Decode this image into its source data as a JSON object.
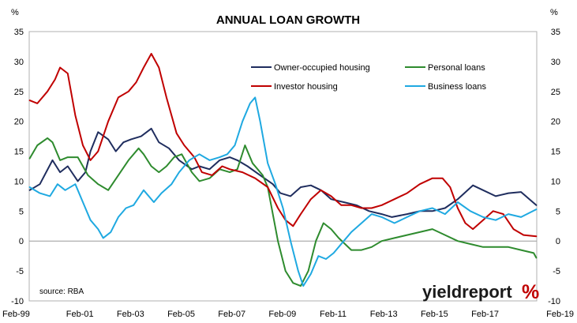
{
  "chart_data": {
    "type": "line",
    "title": "ANNUAL LOAN GROWTH",
    "left_unit": "%",
    "right_unit": "%",
    "source": "source: RBA",
    "brand": "yieldreport",
    "brand_symbol": "%",
    "ylim": [
      -10,
      35
    ],
    "y_ticks": [
      35,
      30,
      25,
      20,
      15,
      10,
      5,
      0,
      -5,
      -10
    ],
    "xlim": [
      1999.08,
      2019.12
    ],
    "x_ticks": [
      {
        "label": "Feb-99",
        "x": 1999.08
      },
      {
        "label": "Feb-01",
        "x": 2001.08
      },
      {
        "label": "Feb-03",
        "x": 2003.08
      },
      {
        "label": "Feb-05",
        "x": 2005.08
      },
      {
        "label": "Feb-07",
        "x": 2007.08
      },
      {
        "label": "Feb-09",
        "x": 2009.08
      },
      {
        "label": "Feb-11",
        "x": 2011.08
      },
      {
        "label": "Feb-13",
        "x": 2013.08
      },
      {
        "label": "Feb-15",
        "x": 2015.08
      },
      {
        "label": "Feb-17",
        "x": 2017.08
      },
      {
        "label": "Feb-19",
        "x": 2019.08
      }
    ],
    "grid": false,
    "legend_position": "top-right",
    "series": [
      {
        "name": "Owner-occupied housing",
        "color": "#1f2d5e",
        "points": [
          [
            1999.1,
            8.5
          ],
          [
            1999.5,
            9.5
          ],
          [
            2000.0,
            13.5
          ],
          [
            2000.3,
            11.5
          ],
          [
            2000.6,
            12.5
          ],
          [
            2001.0,
            10.0
          ],
          [
            2001.3,
            11.5
          ],
          [
            2001.5,
            15.0
          ],
          [
            2001.8,
            18.2
          ],
          [
            2002.2,
            17.0
          ],
          [
            2002.5,
            15.0
          ],
          [
            2002.8,
            16.5
          ],
          [
            2003.1,
            17.0
          ],
          [
            2003.5,
            17.5
          ],
          [
            2003.9,
            18.8
          ],
          [
            2004.2,
            16.5
          ],
          [
            2004.6,
            15.5
          ],
          [
            2005.0,
            13.5
          ],
          [
            2005.5,
            12.0
          ],
          [
            2005.8,
            12.5
          ],
          [
            2006.2,
            12.0
          ],
          [
            2006.6,
            13.5
          ],
          [
            2007.0,
            14.0
          ],
          [
            2007.3,
            13.5
          ],
          [
            2007.7,
            12.5
          ],
          [
            2008.2,
            11.0
          ],
          [
            2008.7,
            9.5
          ],
          [
            2009.0,
            8.0
          ],
          [
            2009.4,
            7.5
          ],
          [
            2009.8,
            9.0
          ],
          [
            2010.2,
            9.3
          ],
          [
            2010.6,
            8.5
          ],
          [
            2011.0,
            7.0
          ],
          [
            2011.5,
            6.5
          ],
          [
            2012.0,
            6.0
          ],
          [
            2012.5,
            5.0
          ],
          [
            2013.0,
            4.5
          ],
          [
            2013.4,
            4.0
          ],
          [
            2014.0,
            4.5
          ],
          [
            2014.5,
            5.0
          ],
          [
            2015.0,
            5.0
          ],
          [
            2015.5,
            5.5
          ],
          [
            2016.0,
            7.0
          ],
          [
            2016.6,
            9.3
          ],
          [
            2017.0,
            8.5
          ],
          [
            2017.5,
            7.5
          ],
          [
            2018.0,
            8.0
          ],
          [
            2018.5,
            8.2
          ],
          [
            2019.1,
            6.0
          ]
        ]
      },
      {
        "name": "Personal loans",
        "color": "#2e8b2e",
        "points": [
          [
            1999.1,
            13.8
          ],
          [
            1999.4,
            16.0
          ],
          [
            1999.8,
            17.2
          ],
          [
            2000.0,
            16.5
          ],
          [
            2000.3,
            13.5
          ],
          [
            2000.6,
            14.0
          ],
          [
            2001.0,
            14.0
          ],
          [
            2001.4,
            11.0
          ],
          [
            2001.8,
            9.5
          ],
          [
            2002.2,
            8.5
          ],
          [
            2002.6,
            11.0
          ],
          [
            2003.0,
            13.5
          ],
          [
            2003.4,
            15.5
          ],
          [
            2003.6,
            14.5
          ],
          [
            2003.9,
            12.5
          ],
          [
            2004.2,
            11.5
          ],
          [
            2004.5,
            12.5
          ],
          [
            2004.8,
            14.0
          ],
          [
            2005.1,
            14.5
          ],
          [
            2005.5,
            11.5
          ],
          [
            2005.8,
            10.0
          ],
          [
            2006.2,
            10.5
          ],
          [
            2006.6,
            12.0
          ],
          [
            2007.0,
            11.5
          ],
          [
            2007.3,
            12.0
          ],
          [
            2007.6,
            16.0
          ],
          [
            2007.9,
            13.0
          ],
          [
            2008.3,
            11.0
          ],
          [
            2008.5,
            9.0
          ],
          [
            2008.9,
            0.0
          ],
          [
            2009.2,
            -5.0
          ],
          [
            2009.5,
            -7.0
          ],
          [
            2009.8,
            -7.5
          ],
          [
            2010.1,
            -5.0
          ],
          [
            2010.4,
            0.0
          ],
          [
            2010.7,
            3.0
          ],
          [
            2011.0,
            2.0
          ],
          [
            2011.3,
            0.5
          ],
          [
            2011.8,
            -1.5
          ],
          [
            2012.2,
            -1.5
          ],
          [
            2012.6,
            -1.0
          ],
          [
            2013.0,
            0.0
          ],
          [
            2013.5,
            0.5
          ],
          [
            2014.0,
            1.0
          ],
          [
            2014.5,
            1.5
          ],
          [
            2015.0,
            2.0
          ],
          [
            2015.5,
            1.0
          ],
          [
            2016.0,
            0.0
          ],
          [
            2016.5,
            -0.5
          ],
          [
            2017.0,
            -1.0
          ],
          [
            2017.5,
            -1.0
          ],
          [
            2018.0,
            -1.0
          ],
          [
            2018.5,
            -1.5
          ],
          [
            2019.0,
            -2.0
          ],
          [
            2019.1,
            -2.8
          ]
        ]
      },
      {
        "name": "Investor housing",
        "color": "#c00000",
        "points": [
          [
            1999.1,
            23.5
          ],
          [
            1999.4,
            23.0
          ],
          [
            1999.8,
            25.0
          ],
          [
            2000.1,
            27.0
          ],
          [
            2000.3,
            29.0
          ],
          [
            2000.6,
            28.0
          ],
          [
            2000.9,
            21.0
          ],
          [
            2001.2,
            16.0
          ],
          [
            2001.5,
            13.5
          ],
          [
            2001.8,
            15.0
          ],
          [
            2002.2,
            20.0
          ],
          [
            2002.6,
            24.0
          ],
          [
            2003.0,
            25.0
          ],
          [
            2003.3,
            26.5
          ],
          [
            2003.6,
            29.0
          ],
          [
            2003.9,
            31.3
          ],
          [
            2004.2,
            29.0
          ],
          [
            2004.5,
            24.0
          ],
          [
            2004.9,
            18.0
          ],
          [
            2005.2,
            16.0
          ],
          [
            2005.6,
            14.0
          ],
          [
            2005.9,
            11.5
          ],
          [
            2006.3,
            11.0
          ],
          [
            2006.7,
            12.5
          ],
          [
            2007.0,
            12.0
          ],
          [
            2007.5,
            11.5
          ],
          [
            2008.0,
            10.5
          ],
          [
            2008.5,
            9.0
          ],
          [
            2008.9,
            5.5
          ],
          [
            2009.2,
            3.5
          ],
          [
            2009.5,
            2.5
          ],
          [
            2009.8,
            4.5
          ],
          [
            2010.2,
            7.0
          ],
          [
            2010.6,
            8.5
          ],
          [
            2011.0,
            7.5
          ],
          [
            2011.4,
            6.0
          ],
          [
            2011.8,
            6.0
          ],
          [
            2012.2,
            5.5
          ],
          [
            2012.6,
            5.5
          ],
          [
            2013.0,
            6.0
          ],
          [
            2013.5,
            7.0
          ],
          [
            2014.0,
            8.0
          ],
          [
            2014.5,
            9.5
          ],
          [
            2015.0,
            10.5
          ],
          [
            2015.4,
            10.5
          ],
          [
            2015.7,
            9.0
          ],
          [
            2016.0,
            5.5
          ],
          [
            2016.3,
            3.0
          ],
          [
            2016.6,
            2.0
          ],
          [
            2017.0,
            3.5
          ],
          [
            2017.4,
            5.0
          ],
          [
            2017.8,
            4.5
          ],
          [
            2018.2,
            2.0
          ],
          [
            2018.6,
            1.0
          ],
          [
            2019.1,
            0.8
          ]
        ]
      },
      {
        "name": "Business loans",
        "color": "#1fa9e1",
        "points": [
          [
            1999.1,
            9.0
          ],
          [
            1999.5,
            8.0
          ],
          [
            1999.9,
            7.5
          ],
          [
            2000.2,
            9.5
          ],
          [
            2000.5,
            8.5
          ],
          [
            2000.9,
            9.5
          ],
          [
            2001.2,
            6.5
          ],
          [
            2001.5,
            3.5
          ],
          [
            2001.8,
            2.0
          ],
          [
            2002.0,
            0.5
          ],
          [
            2002.3,
            1.5
          ],
          [
            2002.6,
            4.0
          ],
          [
            2002.9,
            5.5
          ],
          [
            2003.2,
            6.0
          ],
          [
            2003.6,
            8.5
          ],
          [
            2004.0,
            6.5
          ],
          [
            2004.3,
            8.0
          ],
          [
            2004.7,
            9.5
          ],
          [
            2005.0,
            11.5
          ],
          [
            2005.4,
            13.5
          ],
          [
            2005.8,
            14.5
          ],
          [
            2006.2,
            13.5
          ],
          [
            2006.6,
            14.0
          ],
          [
            2006.9,
            14.5
          ],
          [
            2007.2,
            16.0
          ],
          [
            2007.5,
            20.0
          ],
          [
            2007.8,
            23.0
          ],
          [
            2008.0,
            24.0
          ],
          [
            2008.2,
            20.0
          ],
          [
            2008.5,
            13.0
          ],
          [
            2008.8,
            9.5
          ],
          [
            2009.1,
            5.5
          ],
          [
            2009.4,
            0.0
          ],
          [
            2009.7,
            -5.0
          ],
          [
            2009.9,
            -7.5
          ],
          [
            2010.2,
            -5.5
          ],
          [
            2010.5,
            -2.5
          ],
          [
            2010.8,
            -3.0
          ],
          [
            2011.1,
            -2.0
          ],
          [
            2011.5,
            0.0
          ],
          [
            2011.8,
            1.5
          ],
          [
            2012.2,
            3.0
          ],
          [
            2012.6,
            4.5
          ],
          [
            2013.0,
            4.0
          ],
          [
            2013.5,
            3.0
          ],
          [
            2014.0,
            4.0
          ],
          [
            2014.5,
            5.0
          ],
          [
            2015.0,
            5.5
          ],
          [
            2015.5,
            4.5
          ],
          [
            2016.0,
            6.5
          ],
          [
            2016.5,
            5.0
          ],
          [
            2017.0,
            4.0
          ],
          [
            2017.5,
            3.5
          ],
          [
            2018.0,
            4.5
          ],
          [
            2018.5,
            4.0
          ],
          [
            2019.1,
            5.3
          ]
        ]
      }
    ]
  }
}
